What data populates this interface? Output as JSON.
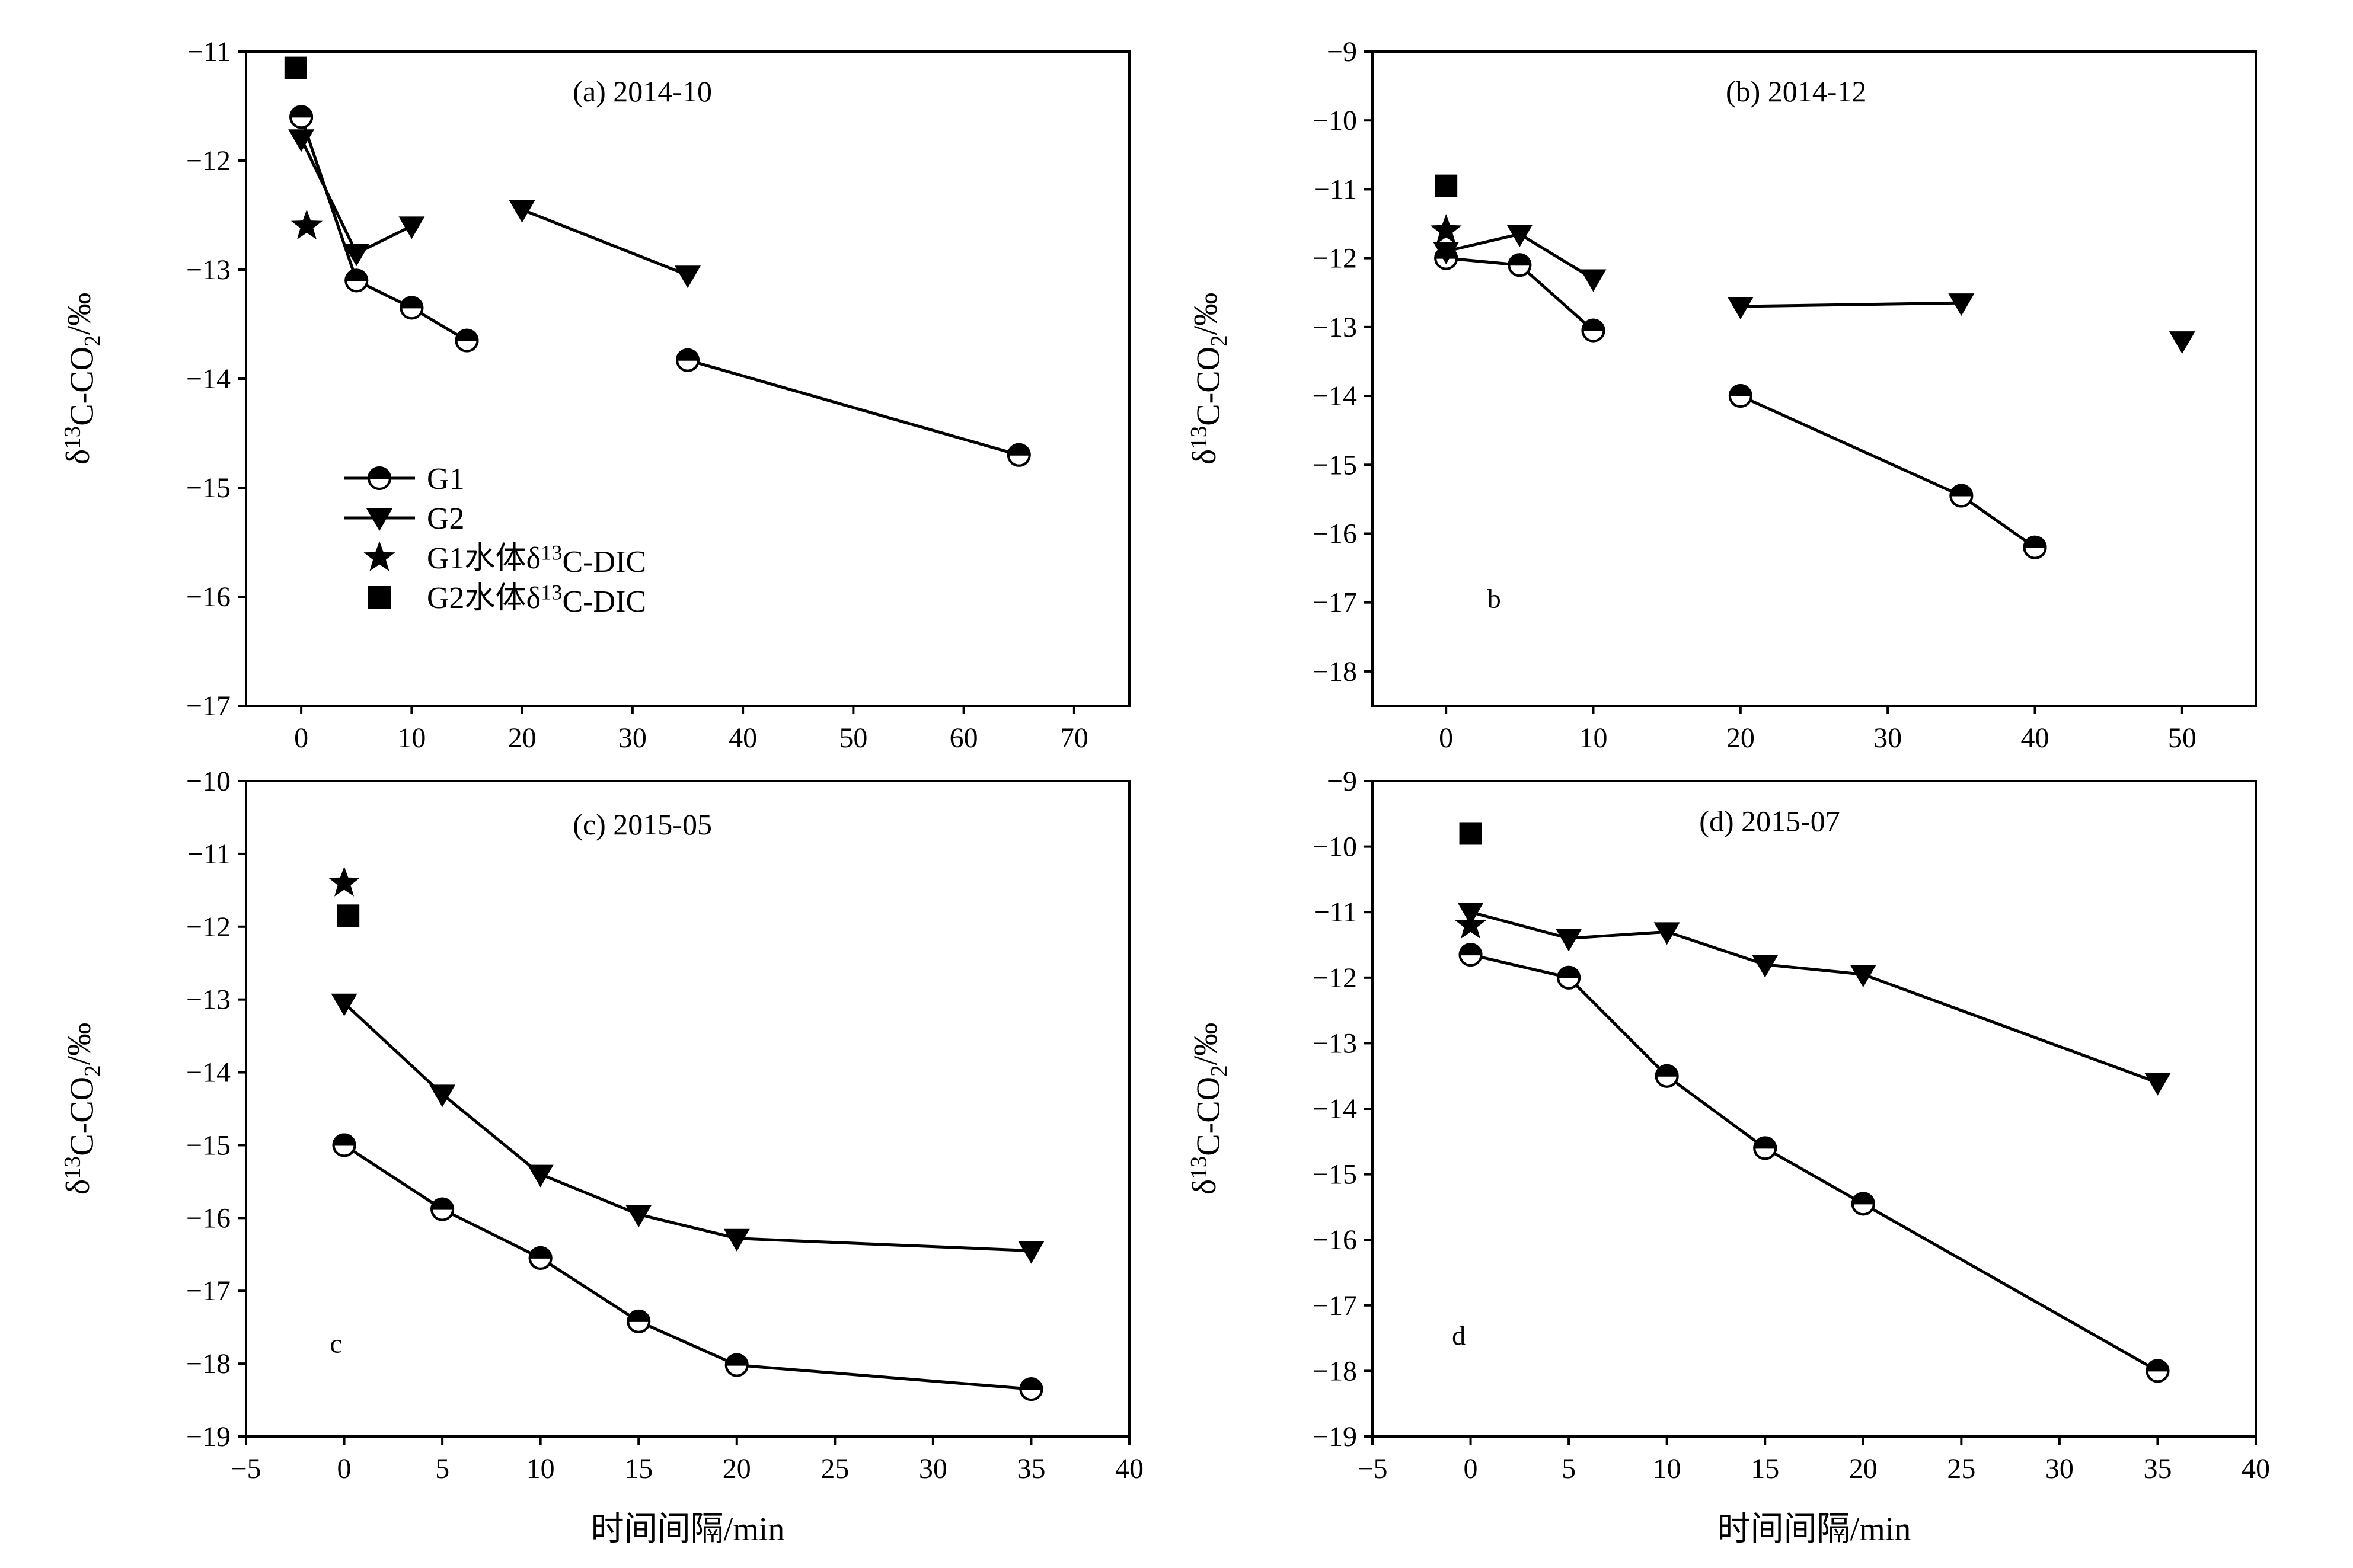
{
  "chart_data": [
    {
      "type": "line",
      "title": "(a)  2014-10",
      "xlabel": "",
      "ylabel": "δ13C-CO2/‰",
      "xlim": [
        -5,
        75
      ],
      "ylim": [
        -17,
        -11
      ],
      "xticks": [
        0,
        10,
        20,
        30,
        40,
        50,
        60,
        70
      ],
      "yticks": [
        -11,
        -12,
        -13,
        -14,
        -15,
        -16,
        -17
      ],
      "legend": {
        "placement": "lower-left",
        "entries": [
          {
            "label": "G1",
            "marker": "half-circle",
            "line": true
          },
          {
            "label": "G2",
            "marker": "triangle-down",
            "line": true
          },
          {
            "label": "G1水体δ13C-DIC",
            "marker": "star",
            "line": false
          },
          {
            "label": "G2水体δ13C-DIC",
            "marker": "square",
            "line": false
          }
        ]
      },
      "series": [
        {
          "name": "G1",
          "marker": "half-circle",
          "segments": [
            {
              "x": [
                0,
                5,
                10,
                15
              ],
              "y": [
                -11.6,
                -13.1,
                -13.35,
                -13.65
              ]
            },
            {
              "x": [
                35,
                65
              ],
              "y": [
                -13.83,
                -14.7
              ]
            }
          ]
        },
        {
          "name": "G2",
          "marker": "triangle-down",
          "segments": [
            {
              "x": [
                0,
                5,
                10
              ],
              "y": [
                -11.8,
                -12.85,
                -12.6
              ]
            },
            {
              "x": [
                20,
                35
              ],
              "y": [
                -12.45,
                -13.05
              ]
            }
          ]
        },
        {
          "name": "G1水体δ13C-DIC",
          "marker": "star",
          "segments": [
            {
              "x": [
                0.5
              ],
              "y": [
                -12.6
              ]
            }
          ]
        },
        {
          "name": "G2水体δ13C-DIC",
          "marker": "square",
          "segments": [
            {
              "x": [
                -0.5
              ],
              "y": [
                -11.15
              ]
            }
          ]
        }
      ]
    },
    {
      "type": "line",
      "title": "(b)  2014-12",
      "letter": "b",
      "xlabel": "",
      "ylabel": "δ13C-CO2/‰",
      "xlim": [
        -5,
        55
      ],
      "ylim": [
        -18.5,
        -9
      ],
      "xticks": [
        0,
        10,
        20,
        30,
        40,
        50
      ],
      "yticks": [
        -9,
        -10,
        -11,
        -12,
        -13,
        -14,
        -15,
        -16,
        -17,
        -18
      ],
      "series": [
        {
          "name": "G1",
          "marker": "half-circle",
          "segments": [
            {
              "x": [
                0,
                5,
                10
              ],
              "y": [
                -12.0,
                -12.1,
                -13.05
              ]
            },
            {
              "x": [
                20,
                35,
                40
              ],
              "y": [
                -14.0,
                -15.45,
                -16.2
              ]
            }
          ]
        },
        {
          "name": "G2",
          "marker": "triangle-down",
          "segments": [
            {
              "x": [
                0,
                5,
                10
              ],
              "y": [
                -11.9,
                -11.65,
                -12.3
              ]
            },
            {
              "x": [
                20,
                35
              ],
              "y": [
                -12.7,
                -12.65
              ]
            },
            {
              "x": [
                50
              ],
              "y": [
                -13.2
              ]
            }
          ]
        },
        {
          "name": "G1水体δ13C-DIC",
          "marker": "star",
          "segments": [
            {
              "x": [
                0
              ],
              "y": [
                -11.6
              ]
            }
          ]
        },
        {
          "name": "G2水体δ13C-DIC",
          "marker": "square",
          "segments": [
            {
              "x": [
                0
              ],
              "y": [
                -10.95
              ]
            }
          ]
        }
      ]
    },
    {
      "type": "line",
      "title": "(c)  2015-05",
      "letter": "c",
      "xlabel": "时间间隔/min",
      "ylabel": "δ13C-CO2/‰",
      "xlim": [
        -5,
        40
      ],
      "ylim": [
        -19,
        -10
      ],
      "xticks": [
        -5,
        0,
        5,
        10,
        15,
        20,
        25,
        30,
        35,
        40
      ],
      "yticks": [
        -10,
        -11,
        -12,
        -13,
        -14,
        -15,
        -16,
        -17,
        -18,
        -19
      ],
      "series": [
        {
          "name": "G1",
          "marker": "half-circle",
          "segments": [
            {
              "x": [
                0,
                5,
                10,
                15,
                20,
                35
              ],
              "y": [
                -15.0,
                -15.88,
                -16.55,
                -17.42,
                -18.02,
                -18.35
              ]
            }
          ]
        },
        {
          "name": "G2",
          "marker": "triangle-down",
          "segments": [
            {
              "x": [
                0,
                5,
                10,
                15,
                20,
                35
              ],
              "y": [
                -13.05,
                -14.3,
                -15.4,
                -15.95,
                -16.28,
                -16.45
              ]
            }
          ]
        },
        {
          "name": "G1水体δ13C-DIC",
          "marker": "star",
          "segments": [
            {
              "x": [
                0
              ],
              "y": [
                -11.4
              ]
            }
          ]
        },
        {
          "name": "G2水体δ13C-DIC",
          "marker": "square",
          "segments": [
            {
              "x": [
                0.2
              ],
              "y": [
                -11.85
              ]
            }
          ]
        }
      ]
    },
    {
      "type": "line",
      "title": "(d)  2015-07",
      "letter": "d",
      "xlabel": "时间间隔/min",
      "ylabel": "δ13C-CO2/‰",
      "xlim": [
        -5,
        40
      ],
      "ylim": [
        -19,
        -9
      ],
      "xticks": [
        -5,
        0,
        5,
        10,
        15,
        20,
        25,
        30,
        35,
        40
      ],
      "yticks": [
        -9,
        -10,
        -11,
        -12,
        -13,
        -14,
        -15,
        -16,
        -17,
        -18,
        -19
      ],
      "series": [
        {
          "name": "G1",
          "marker": "half-circle",
          "segments": [
            {
              "x": [
                0,
                5,
                10,
                15,
                20,
                35
              ],
              "y": [
                -11.65,
                -12.0,
                -13.5,
                -14.6,
                -15.45,
                -18.0
              ]
            }
          ]
        },
        {
          "name": "G2",
          "marker": "triangle-down",
          "segments": [
            {
              "x": [
                0,
                5,
                10,
                15,
                20,
                35
              ],
              "y": [
                -11.0,
                -11.4,
                -11.3,
                -11.8,
                -11.95,
                -13.6
              ]
            }
          ]
        },
        {
          "name": "G1水体δ13C-DIC",
          "marker": "star",
          "segments": [
            {
              "x": [
                0
              ],
              "y": [
                -11.2
              ]
            }
          ]
        },
        {
          "name": "G2水体δ13C-DIC",
          "marker": "square",
          "segments": [
            {
              "x": [
                0
              ],
              "y": [
                -9.8
              ]
            }
          ]
        }
      ]
    }
  ]
}
